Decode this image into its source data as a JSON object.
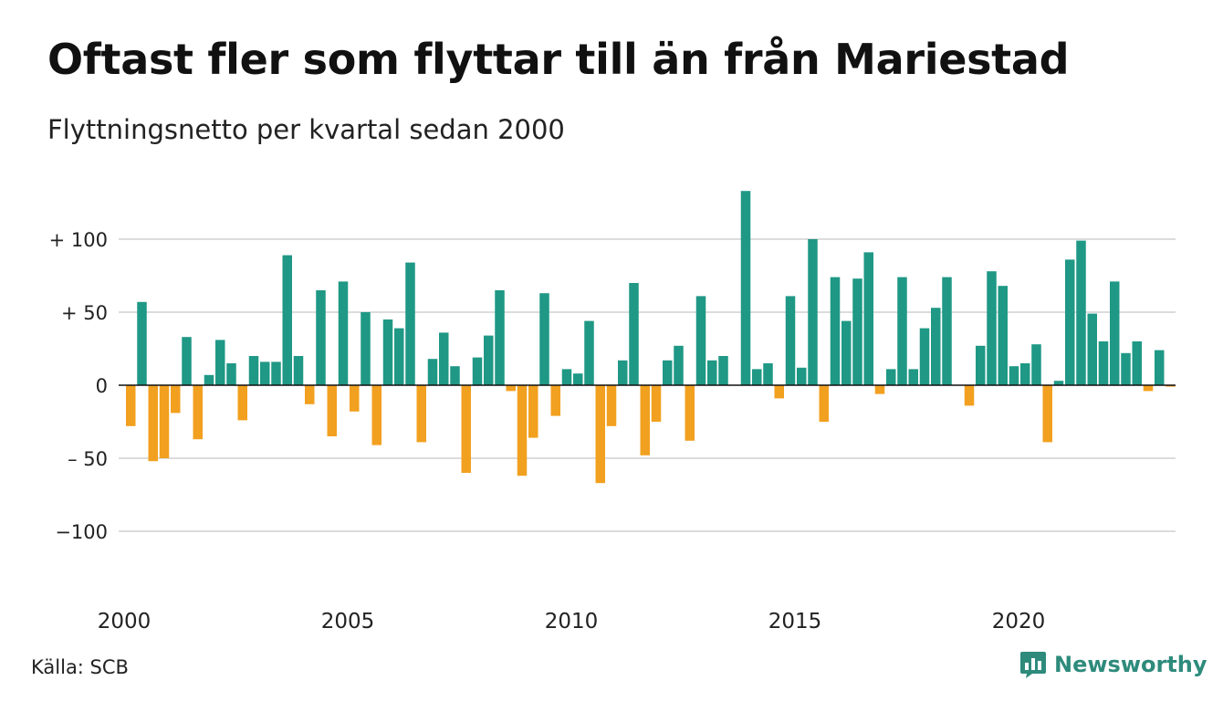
{
  "title": "Oftast fler som flyttar till än från Mariestad",
  "subtitle": "Flyttningsnetto per kvartal sedan 2000",
  "source": "Källa: SCB",
  "brand": "Newsworthy",
  "colors": {
    "positive": "#1f9885",
    "negative": "#f2a01f",
    "grid": "#dcdcdc",
    "brand": "#2e8b7c"
  },
  "icons": {
    "logo": "bar-chart-speech-bubble-icon"
  },
  "chart_data": {
    "type": "bar",
    "title": "Oftast fler som flyttar till än från Mariestad",
    "subtitle": "Flyttningsnetto per kvartal sedan 2000",
    "xlabel": "",
    "ylabel": "",
    "ylim": [
      -140,
      135
    ],
    "grid": true,
    "y_ticks": [
      {
        "value": 100,
        "label": "+ 100"
      },
      {
        "value": 50,
        "label": "+  50"
      },
      {
        "value": 0,
        "label": "0"
      },
      {
        "value": -50,
        "label": "– 50"
      },
      {
        "value": -100,
        "label": "−100"
      }
    ],
    "x_ticks": [
      {
        "year": 2000,
        "label": "2000"
      },
      {
        "year": 2005,
        "label": "2005"
      },
      {
        "year": 2010,
        "label": "2010"
      },
      {
        "year": 2015,
        "label": "2015"
      },
      {
        "year": 2020,
        "label": "2020"
      }
    ],
    "quarters_start": "2000 Q1",
    "values": [
      -28,
      57,
      -52,
      -50,
      -19,
      33,
      -37,
      7,
      31,
      15,
      -24,
      20,
      16,
      16,
      89,
      20,
      -13,
      65,
      -35,
      71,
      -18,
      50,
      -41,
      45,
      39,
      84,
      -39,
      18,
      36,
      13,
      -60,
      19,
      34,
      65,
      -4,
      -62,
      -36,
      63,
      -21,
      11,
      8,
      44,
      -67,
      -28,
      17,
      70,
      -48,
      -25,
      17,
      27,
      -38,
      61,
      17,
      20,
      0,
      133,
      11,
      15,
      -9,
      61,
      12,
      100,
      -25,
      74,
      44,
      73,
      91,
      -6,
      11,
      74,
      11,
      39,
      53,
      74,
      0,
      -14,
      27,
      78,
      68,
      13,
      15,
      28,
      -39,
      3,
      86,
      99,
      49,
      30,
      71,
      22,
      30,
      -4,
      24,
      -1
    ]
  }
}
